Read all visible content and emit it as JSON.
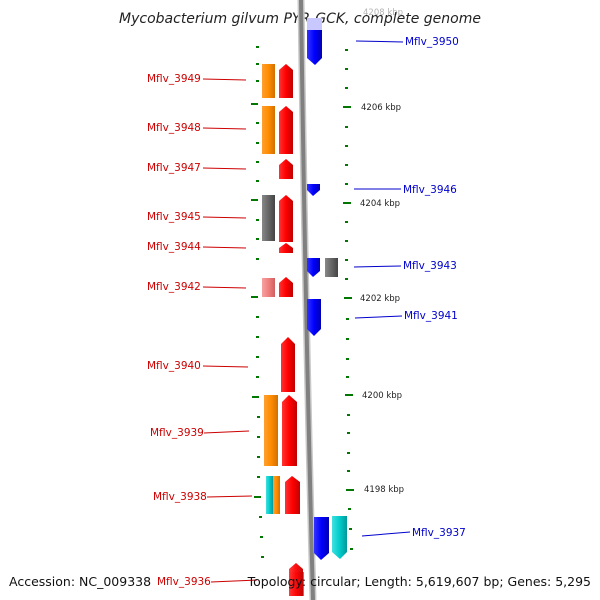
{
  "title": "Mycobacterium gilvum PYR-GCK, complete genome",
  "footer": {
    "accession": "Accession: NC_009338",
    "topology": "Topology: circular; Length: 5,619,607 bp; Genes: 5,295"
  },
  "colors": {
    "forward": "#ff0000",
    "reverse": "#0000ff",
    "orange": "#ff8c00",
    "gray": "#666666",
    "pink": "#f08080",
    "cyan": "#00cccc",
    "tick": "#007700",
    "left_label": "#cc0000",
    "right_label": "#0000cc",
    "backbone": "#888888"
  },
  "scale_labels": [
    {
      "kb": 4208,
      "text": "4208 kbp"
    },
    {
      "kb": 4206,
      "text": "4206 kbp"
    },
    {
      "kb": 4204,
      "text": "4204 kbp"
    },
    {
      "kb": 4202,
      "text": "4202 kbp"
    },
    {
      "kb": 4200,
      "text": "4200 kbp"
    },
    {
      "kb": 4198,
      "text": "4198 kbp"
    }
  ],
  "genes_left": [
    {
      "name": "Mflv_3949"
    },
    {
      "name": "Mflv_3948"
    },
    {
      "name": "Mflv_3947"
    },
    {
      "name": "Mflv_3945"
    },
    {
      "name": "Mflv_3944"
    },
    {
      "name": "Mflv_3942"
    },
    {
      "name": "Mflv_3940"
    },
    {
      "name": "Mflv_3939"
    },
    {
      "name": "Mflv_3938"
    },
    {
      "name": "Mflv_3936"
    }
  ],
  "genes_right": [
    {
      "name": "Mflv_3950"
    },
    {
      "name": "Mflv_3946"
    },
    {
      "name": "Mflv_3943"
    },
    {
      "name": "Mflv_3941"
    },
    {
      "name": "Mflv_3937"
    }
  ]
}
